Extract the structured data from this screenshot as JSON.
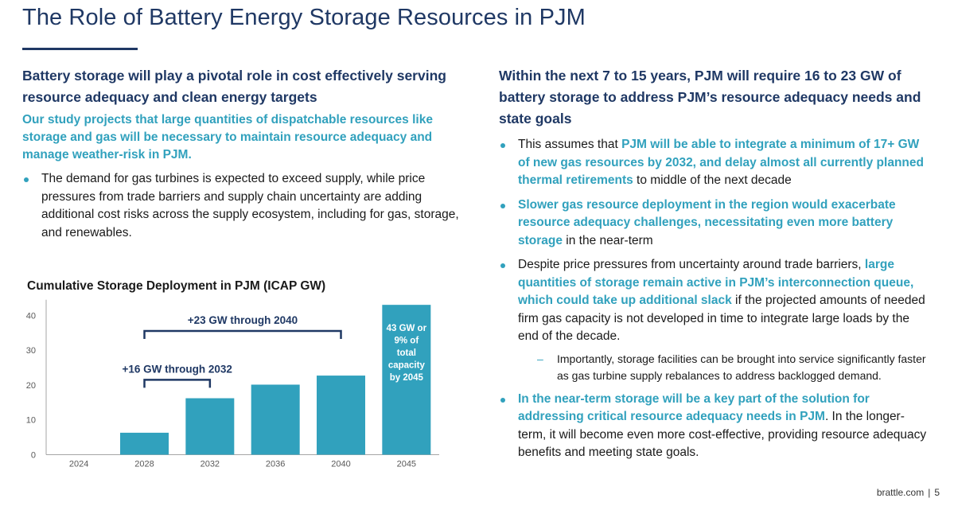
{
  "title": "The Role of Battery Energy Storage Resources in PJM",
  "left": {
    "heading": "Battery storage will play a pivotal role in cost effectively serving resource adequacy and clean energy targets",
    "subheading": "Our study projects that large quantities of dispatchable resources like storage and gas will be necessary to maintain resource adequacy and manage weather-risk in PJM.",
    "bullet": "The demand for gas turbines is expected to exceed supply, while price pressures from trade barriers and supply chain uncertainty are adding additional cost risks across the supply ecosystem, including for gas, storage, and renewables."
  },
  "right": {
    "heading": "Within the next 7 to 15 years, PJM will require 16 to 23 GW of battery storage to address PJM’s resource adequacy needs and state goals",
    "b1_pre": "This assumes that ",
    "b1_hl": "PJM will be able to integrate a minimum of 17+ GW of new gas resources by 2032, and delay almost all currently planned thermal retirements",
    "b1_post": " to middle of the next decade",
    "b2_hl": "Slower gas resource deployment in the region would exacerbate resource adequacy challenges, necessitating even more battery storage",
    "b2_post": " in the near-term",
    "b3_pre": "Despite price pressures from uncertainty around trade barriers, ",
    "b3_hl": "large quantities of storage remain active in PJM’s interconnection queue, which could take up additional slack",
    "b3_post": " if the projected amounts of needed firm gas capacity is not developed in time to integrate large loads by the end of the decade.",
    "sub": "Importantly, storage facilities can be brought into service significantly faster as gas turbine supply rebalances to address backlogged demand.",
    "b4_hl": "In the near-term storage will be a key part of the solution for addressing critical resource adequacy needs in PJM",
    "b4_post": ". In the longer-term, it will become even more cost-effective, providing resource adequacy benefits and meeting state goals."
  },
  "chart_data": {
    "type": "bar",
    "title": "Cumulative Storage Deployment in PJM (ICAP GW)",
    "categories": [
      "2024",
      "2028",
      "2032",
      "2036",
      "2040",
      "2045"
    ],
    "values": [
      0,
      6.3,
      16.2,
      20.1,
      22.7,
      43
    ],
    "ylim": [
      0,
      44
    ],
    "yticks": [
      0,
      10,
      20,
      30,
      40
    ],
    "xlabel": "",
    "ylabel": "",
    "grid": false,
    "annotations": {
      "range_2040": "+23 GW through 2040",
      "range_2032": "+16 GW through 2032",
      "last_bar_lines": [
        "43 GW or",
        "9% of",
        "total",
        "capacity",
        "by 2045"
      ]
    },
    "colors": {
      "bar": "#31a1bd",
      "bracket": "#1f3864",
      "axis": "#a6a6a6",
      "annotation_text": "#1f3864",
      "last_bar_text": "#ffffff"
    }
  },
  "footer": {
    "site": "brattle.com",
    "separator": "|",
    "page": "5"
  }
}
